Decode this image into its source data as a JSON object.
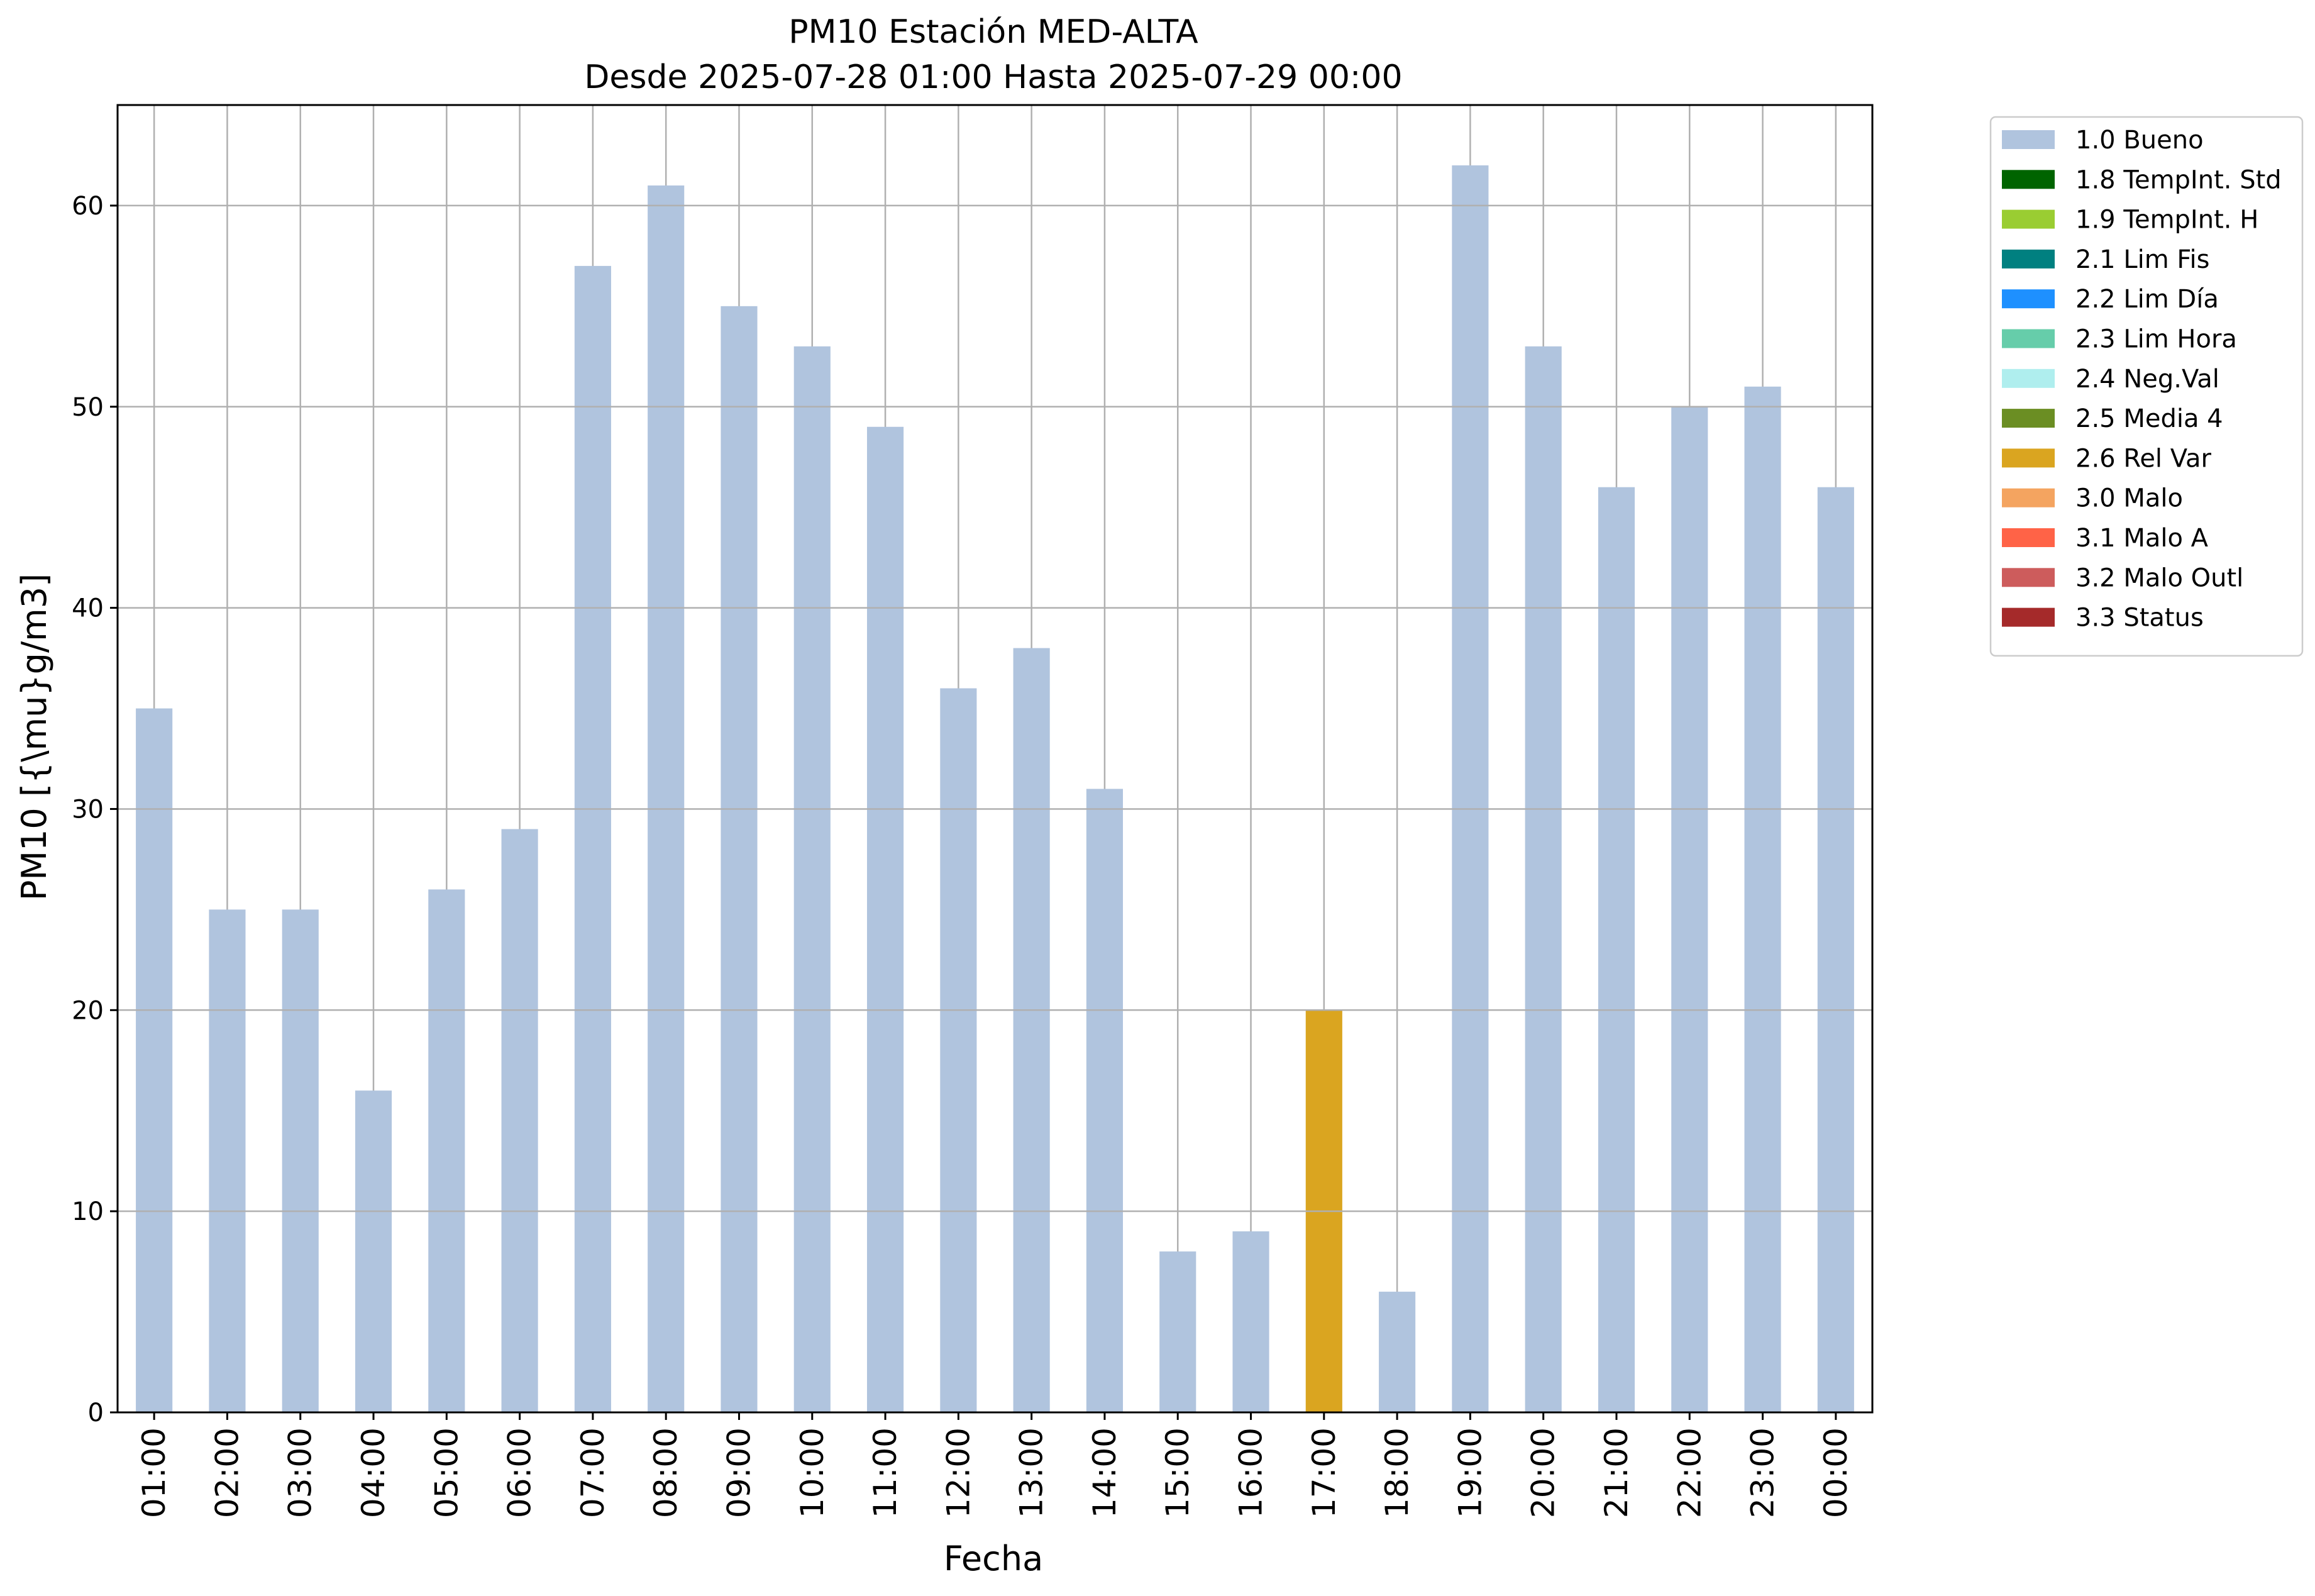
{
  "chart_data": {
    "type": "bar",
    "title": "PM10 Estación MED-ALTA",
    "subtitle": "Desde 2025-07-28 01:00 Hasta 2025-07-29 00:00",
    "xlabel": "Fecha",
    "ylabel": "PM10 [{\\mu}g/m3]",
    "ylim": [
      0,
      65
    ],
    "yticks": [
      0,
      10,
      20,
      30,
      40,
      50,
      60
    ],
    "grid": true,
    "legend_position": "outside-right",
    "categories": [
      "01:00",
      "02:00",
      "03:00",
      "04:00",
      "05:00",
      "06:00",
      "07:00",
      "08:00",
      "09:00",
      "10:00",
      "11:00",
      "12:00",
      "13:00",
      "14:00",
      "15:00",
      "16:00",
      "17:00",
      "18:00",
      "19:00",
      "20:00",
      "21:00",
      "22:00",
      "23:00",
      "00:00"
    ],
    "values": [
      35,
      25,
      25,
      16,
      26,
      29,
      57,
      61,
      55,
      53,
      49,
      36,
      38,
      31,
      8,
      9,
      20,
      6,
      62,
      53,
      46,
      50,
      51,
      46
    ],
    "flags": [
      "1.0 Bueno",
      "1.0 Bueno",
      "1.0 Bueno",
      "1.0 Bueno",
      "1.0 Bueno",
      "1.0 Bueno",
      "1.0 Bueno",
      "1.0 Bueno",
      "1.0 Bueno",
      "1.0 Bueno",
      "1.0 Bueno",
      "1.0 Bueno",
      "1.0 Bueno",
      "1.0 Bueno",
      "1.0 Bueno",
      "1.0 Bueno",
      "2.6 Rel Var",
      "1.0 Bueno",
      "1.0 Bueno",
      "1.0 Bueno",
      "1.0 Bueno",
      "1.0 Bueno",
      "1.0 Bueno",
      "1.0 Bueno"
    ],
    "legend": [
      {
        "name": "1.0 Bueno",
        "color": "#b0c4de"
      },
      {
        "name": "1.8 TempInt. Std",
        "color": "#006400"
      },
      {
        "name": "1.9 TempInt. H",
        "color": "#9acd32"
      },
      {
        "name": "2.1 Lim Fis",
        "color": "#008080"
      },
      {
        "name": "2.2 Lim Día",
        "color": "#1e90ff"
      },
      {
        "name": "2.3 Lim Hora",
        "color": "#66cdaa"
      },
      {
        "name": "2.4 Neg.Val",
        "color": "#afeeee"
      },
      {
        "name": "2.5 Media 4",
        "color": "#6b8e23"
      },
      {
        "name": "2.6 Rel Var",
        "color": "#daa520"
      },
      {
        "name": "3.0 Malo",
        "color": "#f4a460"
      },
      {
        "name": "3.1 Malo A",
        "color": "#ff6347"
      },
      {
        "name": "3.2 Malo Outl",
        "color": "#cd5c5c"
      },
      {
        "name": "3.3 Status",
        "color": "#a52a2a"
      }
    ]
  }
}
